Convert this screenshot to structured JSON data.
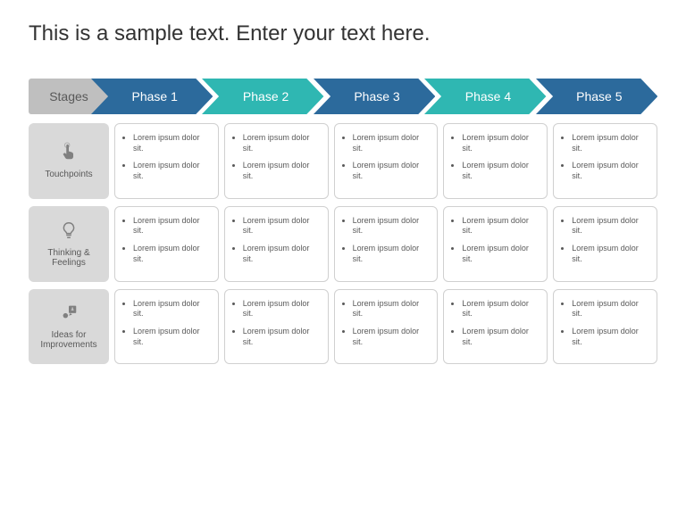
{
  "title": "This is a sample text. Enter your text here.",
  "header_label": "Stages",
  "phases": [
    {
      "label": "Phase 1",
      "color": "#2c6a9c"
    },
    {
      "label": "Phase 2",
      "color": "#2fb7b2"
    },
    {
      "label": "Phase 3",
      "color": "#2c6a9c"
    },
    {
      "label": "Phase 4",
      "color": "#2fb7b2"
    },
    {
      "label": "Phase 5",
      "color": "#2c6a9c"
    }
  ],
  "rows": [
    {
      "icon": "touch",
      "label": "Touchpoints",
      "cells": [
        [
          "Lorem ipsum dolor sit.",
          "Lorem ipsum dolor sit."
        ],
        [
          "Lorem ipsum dolor sit.",
          "Lorem ipsum dolor sit."
        ],
        [
          "Lorem ipsum dolor sit.",
          "Lorem ipsum dolor sit."
        ],
        [
          "Lorem ipsum dolor sit.",
          "Lorem ipsum dolor sit."
        ],
        [
          "Lorem ipsum dolor sit.",
          "Lorem ipsum dolor sit."
        ]
      ]
    },
    {
      "icon": "bulb",
      "label": "Thinking & Feelings",
      "cells": [
        [
          "Lorem ipsum dolor sit.",
          "Lorem ipsum dolor sit."
        ],
        [
          "Lorem ipsum dolor sit.",
          "Lorem ipsum dolor sit."
        ],
        [
          "Lorem ipsum dolor sit.",
          "Lorem ipsum dolor sit."
        ],
        [
          "Lorem ipsum dolor sit.",
          "Lorem ipsum dolor sit."
        ],
        [
          "Lorem ipsum dolor sit.",
          "Lorem ipsum dolor sit."
        ]
      ]
    },
    {
      "icon": "idea",
      "label": "Ideas for Improvements",
      "cells": [
        [
          "Lorem ipsum dolor sit.",
          "Lorem ipsum dolor sit."
        ],
        [
          "Lorem ipsum dolor sit.",
          "Lorem ipsum dolor sit."
        ],
        [
          "Lorem ipsum dolor sit.",
          "Lorem ipsum dolor sit."
        ],
        [
          "Lorem ipsum dolor sit.",
          "Lorem ipsum dolor sit."
        ],
        [
          "Lorem ipsum dolor sit.",
          "Lorem ipsum dolor sit."
        ]
      ]
    }
  ],
  "colors": {
    "header_bg": "#bfbfbf",
    "header_text": "#595959",
    "row_label_bg": "#d9d9d9",
    "row_label_text": "#595959",
    "cell_border": "#d0d0d0",
    "cell_text": "#595959",
    "background": "#ffffff",
    "title_text": "#333333",
    "icon_color": "#808080"
  },
  "layout": {
    "row_label_width": 90,
    "arrow_height": 40,
    "cell_gap": 6,
    "row_gap": 10,
    "cell_radius": 6,
    "title_fontsize": 24,
    "phase_fontsize": 14,
    "rowlabel_fontsize": 10,
    "cell_fontsize": 9
  }
}
